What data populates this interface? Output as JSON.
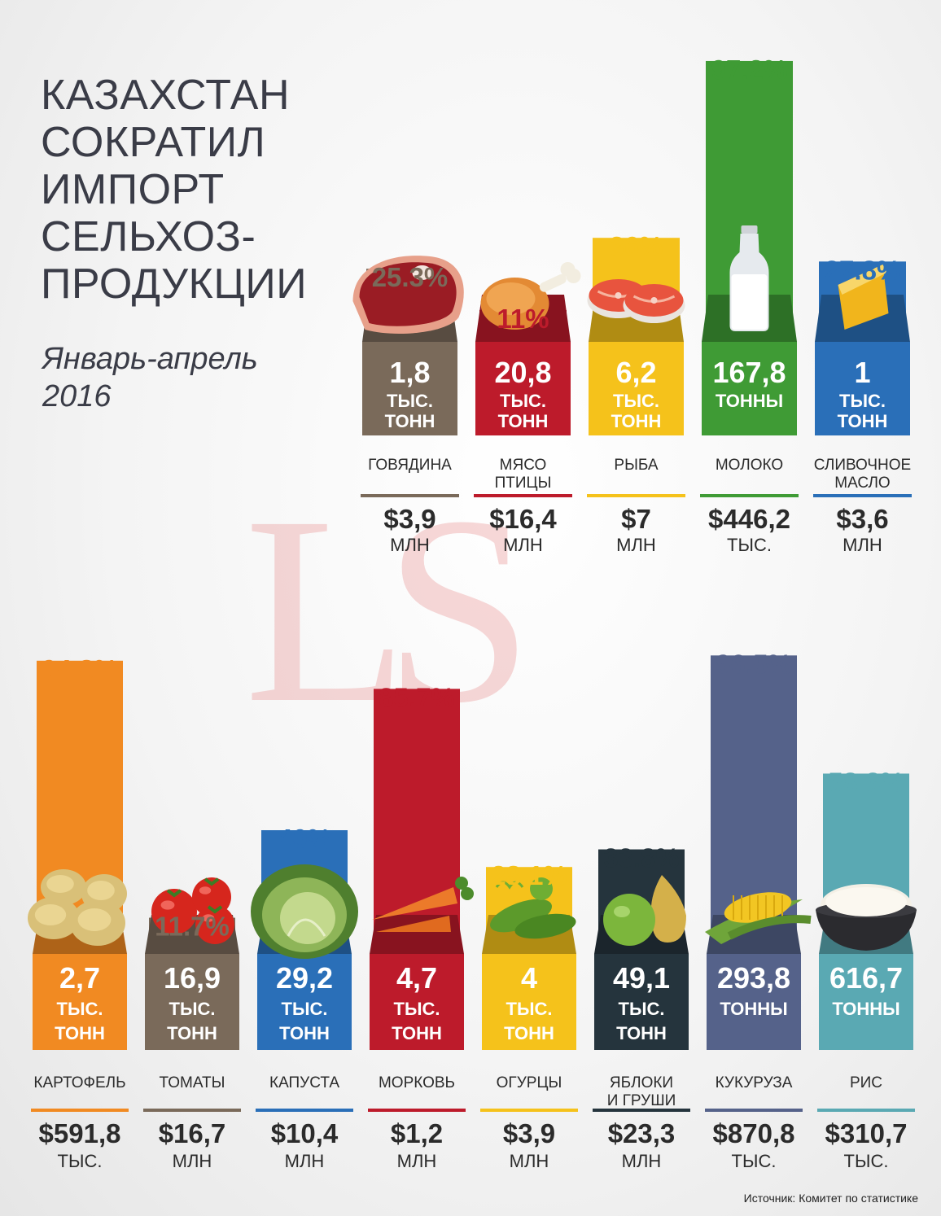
{
  "title_lines": [
    "КАЗАХСТАН",
    "СОКРАТИЛ",
    "ИМПОРТ",
    "СЕЛЬХОЗ-",
    "ПРОДУКЦИИ"
  ],
  "period_lines": [
    "Январь-апрель",
    "2016"
  ],
  "watermark_text": "LS",
  "source": "Источник: Комитет по статистике",
  "colors": {
    "beef": "#7a6a5a",
    "poultry": "#bd1b2b",
    "fish": "#f5c21b",
    "milk": "#3f9b35",
    "butter": "#2a6fb8",
    "potato": "#f18a22",
    "tomato": "#7a6a5a",
    "cabbage": "#2a6fb8",
    "carrot": "#bd1b2b",
    "cucumber": "#f5c21b",
    "apples": "#25343d",
    "corn": "#55628a",
    "rice": "#5aa9b3"
  },
  "chart_data": [
    {
      "type": "bar",
      "categories": [
        "ГОВЯДИНА",
        "МЯСО ПТИЦЫ",
        "РЫБА",
        "МОЛОКО",
        "СЛИВОЧНОЕ МАСЛО"
      ],
      "category_lines": [
        [
          "ГОВЯДИНА"
        ],
        [
          "МЯСО",
          "ПТИЦЫ"
        ],
        [
          "РЫБА"
        ],
        [
          "МОЛОКО"
        ],
        [
          "СЛИВОЧНОЕ",
          "МАСЛО"
        ]
      ],
      "values": [
        25.3,
        11,
        36,
        97.2,
        27.8
      ],
      "value_labels": [
        "25.3%",
        "11%",
        "36%",
        "97.2%",
        "27.8%"
      ],
      "volume_labels": [
        [
          "1,8",
          "ТЫС.",
          "ТОНН"
        ],
        [
          "20,8",
          "ТЫС.",
          "ТОНН"
        ],
        [
          "6,2",
          "ТЫС.",
          "ТОНН"
        ],
        [
          "167,8",
          "ТОННЫ"
        ],
        [
          "1",
          "ТЫС.",
          "ТОНН"
        ]
      ],
      "cost_labels": [
        [
          "$3,9",
          "МЛН"
        ],
        [
          "$16,4",
          "МЛН"
        ],
        [
          "$7",
          "МЛН"
        ],
        [
          "$446,2",
          "ТЫС."
        ],
        [
          "$3,6",
          "МЛН"
        ]
      ],
      "icons": [
        "steak-icon",
        "chicken-leg-icon",
        "salmon-steak-icon",
        "milk-bottle-icon",
        "cheese-icon"
      ],
      "color_keys": [
        "beef",
        "poultry",
        "fish",
        "milk",
        "butter"
      ],
      "ylim": [
        0,
        100
      ]
    },
    {
      "type": "bar",
      "categories": [
        "КАРТОФЕЛЬ",
        "ТОМАТЫ",
        "КАПУСТА",
        "МОРКОВЬ",
        "ОГУРЦЫ",
        "ЯБЛОКИ И ГРУШИ",
        "КУКУРУЗА",
        "РИС"
      ],
      "category_lines": [
        [
          "КАРТОФЕЛЬ"
        ],
        [
          "ТОМАТЫ"
        ],
        [
          "КАПУСТА"
        ],
        [
          "МОРКОВЬ"
        ],
        [
          "ОГУРЦЫ"
        ],
        [
          "ЯБЛОКИ",
          "И ГРУШИ"
        ],
        [
          "КУКУРУЗА"
        ],
        [
          "РИС"
        ]
      ],
      "values": [
        94.8,
        11.7,
        40,
        85.7,
        28.1,
        33.8,
        96.5,
        58.3
      ],
      "value_labels": [
        "94.8%",
        "11.7%",
        "40%",
        "85.7%",
        "28.1%",
        "33.8%",
        "96.5%",
        "58.3%"
      ],
      "volume_labels": [
        [
          "2,7",
          "ТЫС.",
          "ТОНН"
        ],
        [
          "16,9",
          "ТЫС.",
          "ТОНН"
        ],
        [
          "29,2",
          "ТЫС.",
          "ТОНН"
        ],
        [
          "4,7",
          "ТЫС.",
          "ТОНН"
        ],
        [
          "4",
          "ТЫС.",
          "ТОНН"
        ],
        [
          "49,1",
          "ТЫС.",
          "ТОНН"
        ],
        [
          "293,8",
          "ТОННЫ"
        ],
        [
          "616,7",
          "ТОННЫ"
        ]
      ],
      "cost_labels": [
        [
          "$591,8",
          "ТЫС."
        ],
        [
          "$16,7",
          "МЛН"
        ],
        [
          "$10,4",
          "МЛН"
        ],
        [
          "$1,2",
          "МЛН"
        ],
        [
          "$3,9",
          "МЛН"
        ],
        [
          "$23,3",
          "МЛН"
        ],
        [
          "$870,8",
          "ТЫС."
        ],
        [
          "$310,7",
          "ТЫС."
        ]
      ],
      "icons": [
        "potato-icon",
        "tomato-icon",
        "cabbage-icon",
        "carrot-icon",
        "cucumber-icon",
        "apple-pear-icon",
        "corn-icon",
        "rice-bowl-icon"
      ],
      "color_keys": [
        "potato",
        "tomato",
        "cabbage",
        "carrot",
        "cucumber",
        "apples",
        "corn",
        "rice"
      ],
      "ylim": [
        0,
        100
      ]
    }
  ]
}
